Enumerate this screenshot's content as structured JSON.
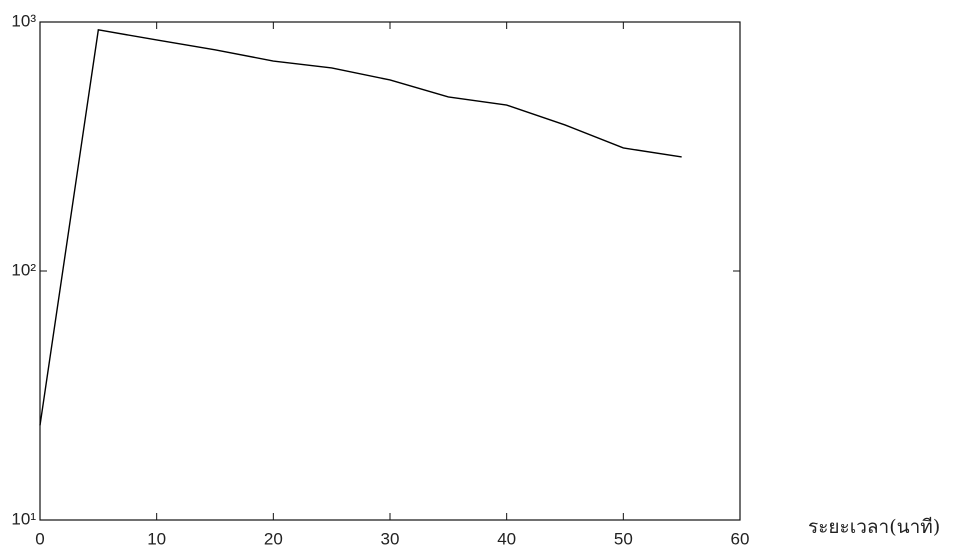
{
  "chart_data": {
    "type": "line",
    "x": [
      0,
      5,
      10,
      15,
      20,
      25,
      30,
      35,
      40,
      45,
      50,
      55
    ],
    "series": [
      {
        "color": "#000000",
        "values": [
          24,
          930,
          847,
          773,
          697,
          654,
          585,
          500,
          464,
          386,
          312,
          287
        ]
      }
    ],
    "xlabel": "ระยะเวลา(นาที)",
    "xlim": [
      0,
      60
    ],
    "xticks": [
      0,
      10,
      20,
      30,
      40,
      50,
      60
    ],
    "ylim": [
      10,
      1000
    ],
    "yscale": "log",
    "yticks": [
      {
        "value": 10,
        "label": "10¹"
      },
      {
        "value": 100,
        "label": "10²"
      },
      {
        "value": 1000,
        "label": "10³"
      }
    ]
  }
}
